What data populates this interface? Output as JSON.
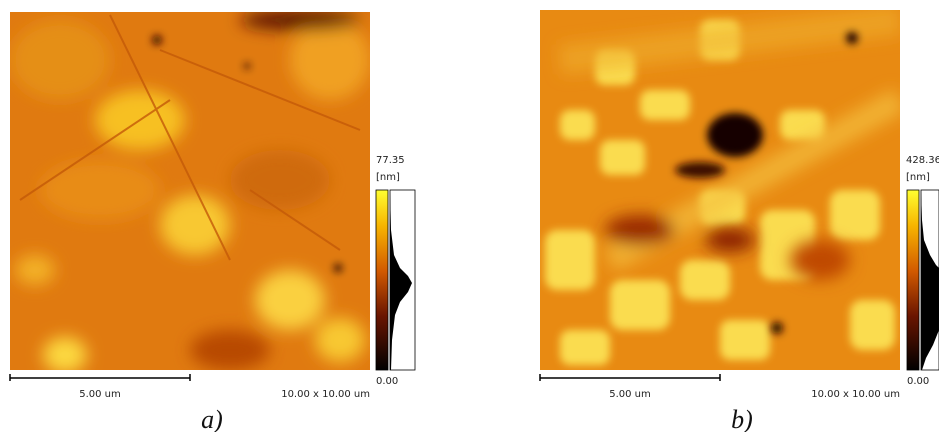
{
  "panels": [
    {
      "label": "a)",
      "scale_max": "77.35",
      "unit": "[nm]",
      "scale_min": "0.00",
      "scale_bar": "5.00 um",
      "scan_size": "10.00 x 10.00 um"
    },
    {
      "label": "b)",
      "scale_max": "428.36",
      "unit": "[nm]",
      "scale_min": "0.00",
      "scale_bar": "5.00 um",
      "scan_size": "10.00 x 10.00 um"
    }
  ]
}
